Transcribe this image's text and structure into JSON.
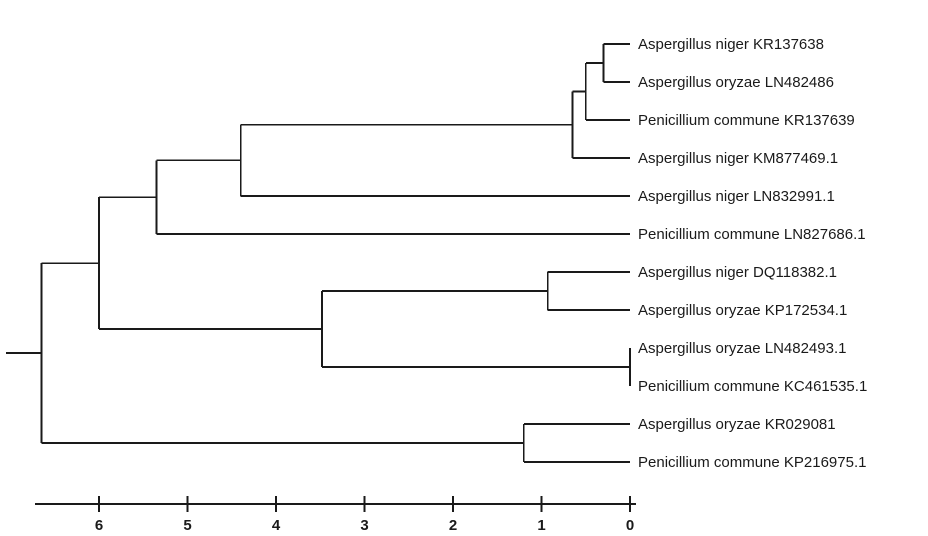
{
  "tree": {
    "leaves": [
      "Aspergillus niger KR137638",
      "Aspergillus oryzae LN482486",
      "Penicillium commune KR137639",
      "Aspergillus niger KM877469.1",
      "Aspergillus niger LN832991.1",
      "Penicillium commune LN827686.1",
      "Aspergillus niger DQ118382.1",
      "Aspergillus oryzae KP172534.1",
      "Aspergillus oryzae LN482493.1",
      "Penicillium commune KC461535.1",
      "Aspergillus oryzae KR029081",
      "Penicillium commune KP216975.1"
    ],
    "nodes": [
      {
        "id": "n1",
        "children": [
          "L0",
          "L1"
        ],
        "height": 0.3
      },
      {
        "id": "n2",
        "children": [
          "n1",
          "L2"
        ],
        "height": 0.5
      },
      {
        "id": "n3",
        "children": [
          "n2",
          "L3"
        ],
        "height": 0.65
      },
      {
        "id": "n4",
        "children": [
          "n3",
          "L4"
        ],
        "height": 4.4
      },
      {
        "id": "n5",
        "children": [
          "n4",
          "L5"
        ],
        "height": 5.35
      },
      {
        "id": "n6",
        "children": [
          "L6",
          "L7"
        ],
        "height": 0.93
      },
      {
        "id": "n7",
        "children": [
          "L8",
          "L9"
        ],
        "height": 0.0
      },
      {
        "id": "n8",
        "children": [
          "n6",
          "n7"
        ],
        "height": 3.48
      },
      {
        "id": "n9",
        "children": [
          "n5",
          "n8"
        ],
        "height": 6.0
      },
      {
        "id": "n10",
        "children": [
          "L10",
          "L11"
        ],
        "height": 1.2
      },
      {
        "id": "n11",
        "children": [
          "n9",
          "n10"
        ],
        "height": 6.65
      }
    ],
    "root": "n11",
    "root_stub": 0.4
  },
  "scale_axis": {
    "ticks": [
      6,
      5,
      4,
      3,
      2,
      1,
      0
    ],
    "range": [
      6.65,
      0
    ]
  }
}
